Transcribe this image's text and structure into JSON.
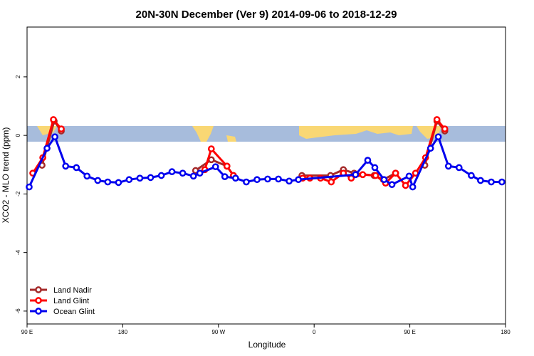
{
  "chart_data": {
    "type": "line",
    "title": "20N-30N December (Ver 9)   2014-09-06 to 2018-12-29",
    "x_label": "Longitude",
    "y_label": "XCO2 - MLO trend (ppm)",
    "xlim": [
      90,
      540
    ],
    "ylim": [
      -6.44,
      3.7
    ],
    "xticks": [
      {
        "value": 90,
        "label": "90 E"
      },
      {
        "value": 180,
        "label": "180"
      },
      {
        "value": 270,
        "label": "90 W"
      },
      {
        "value": 360,
        "label": "0"
      },
      {
        "value": 450,
        "label": "90 E"
      },
      {
        "value": 540,
        "label": "180"
      }
    ],
    "yticks": [
      -6,
      -4,
      -2,
      0,
      2
    ],
    "legend": "bottom-left",
    "series": [
      {
        "name": "Land Nadir",
        "color": "#a52a2a",
        "x": [
          104.1,
          115.5,
          122.2,
          null,
          248.5,
          263.3,
          278.0,
          284.1,
          null,
          348.5,
          375.4,
          387.5,
          397.6,
          416.4,
          425.1,
          436.6,
          null,
          464.1,
          475.5,
          482.9
        ],
        "values": [
          -1.02,
          0.49,
          0.15,
          null,
          -1.2,
          -0.83,
          -1.05,
          -1.37,
          null,
          -1.37,
          -1.37,
          -1.17,
          -1.29,
          -1.37,
          -1.51,
          -1.29,
          null,
          -1.02,
          0.49,
          0.15
        ]
      },
      {
        "name": "Land Glint",
        "color": "#ff0000",
        "x": [
          95.4,
          104.8,
          114.8,
          122.2,
          null,
          257.2,
          263.3,
          278.0,
          284.1,
          null,
          349.2,
          356.0,
          366.0,
          376.1,
          387.5,
          394.9,
          405.7,
          417.8,
          427.2,
          436.6,
          446.0,
          455.4,
          464.8,
          475.5,
          482.9
        ],
        "values": [
          -1.29,
          -0.76,
          0.54,
          0.22,
          null,
          -1.17,
          -0.46,
          -1.05,
          -1.37,
          null,
          -1.46,
          -1.46,
          -1.46,
          -1.59,
          -1.29,
          -1.46,
          -1.34,
          -1.37,
          -1.63,
          -1.29,
          -1.71,
          -1.29,
          -0.76,
          0.54,
          0.22
        ]
      },
      {
        "name": "Ocean Glint",
        "color": "#0000ee",
        "x": [
          92.0,
          108.8,
          116.2,
          126.3,
          136.4,
          146.4,
          156.5,
          165.9,
          176.0,
          186.0,
          196.1,
          206.2,
          216.3,
          226.3,
          236.4,
          246.5,
          252.5,
          267.3,
          276.0,
          286.1,
          296.2,
          306.3,
          316.3,
          326.4,
          336.5,
          345.2,
          398.9,
          410.4,
          417.1,
          425.8,
          433.2,
          449.3,
          452.7,
          469.5,
          476.8,
          486.3,
          496.3,
          507.8,
          516.5,
          526.6,
          536.6
        ],
        "values": [
          -1.76,
          -0.44,
          -0.05,
          -1.05,
          -1.1,
          -1.39,
          -1.54,
          -1.59,
          -1.61,
          -1.51,
          -1.46,
          -1.44,
          -1.37,
          -1.24,
          -1.29,
          -1.39,
          -1.29,
          -1.07,
          -1.41,
          -1.46,
          -1.59,
          -1.51,
          -1.49,
          -1.49,
          -1.56,
          -1.51,
          -1.34,
          -0.85,
          -1.1,
          -1.51,
          -1.68,
          -1.39,
          -1.76,
          -0.44,
          -0.05,
          -1.05,
          -1.1,
          -1.37,
          -1.54,
          -1.59,
          -1.59
        ]
      }
    ]
  }
}
